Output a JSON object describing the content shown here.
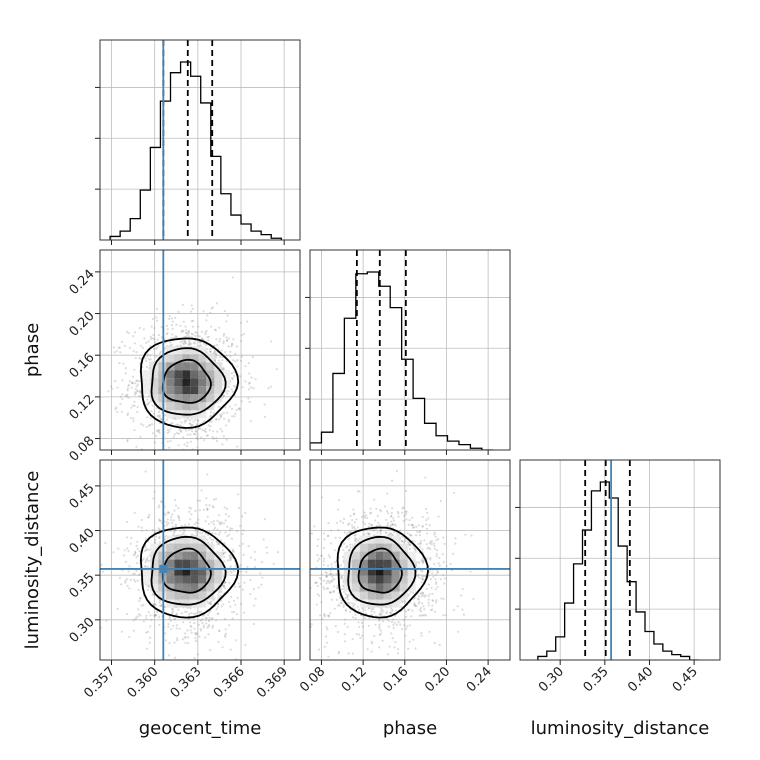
{
  "chart_data": {
    "type": "corner",
    "parameters": [
      "geocent_time",
      "phase",
      "luminosity_distance"
    ],
    "axis_labels": {
      "x": [
        "geocent_time",
        "phase",
        "luminosity_distance"
      ],
      "y": [
        "",
        "phase",
        "luminosity_distance"
      ]
    },
    "truth": {
      "geocent_time": 0.3606,
      "phase": null,
      "luminosity_distance": 0.357
    },
    "truth_color": "#4682b4",
    "ranges": {
      "geocent_time": [
        0.3562,
        0.3701
      ],
      "phase": [
        0.069,
        0.261
      ],
      "luminosity_distance": [
        0.255,
        0.479
      ]
    },
    "ticks": {
      "geocent_time": [
        0.357,
        0.36,
        0.363,
        0.366,
        0.369
      ],
      "phase": [
        0.08,
        0.12,
        0.16,
        0.2,
        0.24
      ],
      "luminosity_distance": [
        0.3,
        0.35,
        0.4,
        0.45
      ]
    },
    "tick_labels": {
      "geocent_time": [
        "0.357",
        "0.360",
        "0.363",
        "0.366",
        "0.369"
      ],
      "phase": [
        "0.08",
        "0.12",
        "0.16",
        "0.20",
        "0.24"
      ],
      "luminosity_distance": [
        "0.30",
        "0.35",
        "0.40",
        "0.45"
      ]
    },
    "grid": true,
    "histograms": [
      {
        "parameter": "geocent_time",
        "quantiles": [
          0.3606,
          0.3623,
          0.364
        ],
        "bins": [
          {
            "x0": 0.3569,
            "x1": 0.3576,
            "v": 2
          },
          {
            "x0": 0.3576,
            "x1": 0.3583,
            "v": 5
          },
          {
            "x0": 0.3583,
            "x1": 0.359,
            "v": 12
          },
          {
            "x0": 0.359,
            "x1": 0.3597,
            "v": 28
          },
          {
            "x0": 0.3597,
            "x1": 0.3604,
            "v": 52
          },
          {
            "x0": 0.3604,
            "x1": 0.3611,
            "v": 78
          },
          {
            "x0": 0.3611,
            "x1": 0.3618,
            "v": 94
          },
          {
            "x0": 0.3618,
            "x1": 0.3625,
            "v": 100
          },
          {
            "x0": 0.3625,
            "x1": 0.3632,
            "v": 92
          },
          {
            "x0": 0.3632,
            "x1": 0.3639,
            "v": 77
          },
          {
            "x0": 0.3639,
            "x1": 0.3646,
            "v": 47
          },
          {
            "x0": 0.3646,
            "x1": 0.3653,
            "v": 26
          },
          {
            "x0": 0.3653,
            "x1": 0.366,
            "v": 14
          },
          {
            "x0": 0.366,
            "x1": 0.3667,
            "v": 9
          },
          {
            "x0": 0.3667,
            "x1": 0.3674,
            "v": 5
          },
          {
            "x0": 0.3674,
            "x1": 0.3681,
            "v": 3
          },
          {
            "x0": 0.3681,
            "x1": 0.3688,
            "v": 1
          }
        ]
      },
      {
        "parameter": "phase",
        "quantiles": [
          0.114,
          0.136,
          0.161
        ],
        "bins": [
          {
            "x0": 0.069,
            "x1": 0.08,
            "v": 4
          },
          {
            "x0": 0.08,
            "x1": 0.091,
            "v": 10
          },
          {
            "x0": 0.091,
            "x1": 0.102,
            "v": 43
          },
          {
            "x0": 0.102,
            "x1": 0.113,
            "v": 74
          },
          {
            "x0": 0.113,
            "x1": 0.124,
            "v": 99
          },
          {
            "x0": 0.124,
            "x1": 0.135,
            "v": 100
          },
          {
            "x0": 0.135,
            "x1": 0.146,
            "v": 92
          },
          {
            "x0": 0.146,
            "x1": 0.157,
            "v": 80
          },
          {
            "x0": 0.157,
            "x1": 0.168,
            "v": 51
          },
          {
            "x0": 0.168,
            "x1": 0.179,
            "v": 29
          },
          {
            "x0": 0.179,
            "x1": 0.19,
            "v": 15
          },
          {
            "x0": 0.19,
            "x1": 0.201,
            "v": 8
          },
          {
            "x0": 0.201,
            "x1": 0.212,
            "v": 5
          },
          {
            "x0": 0.212,
            "x1": 0.223,
            "v": 3
          },
          {
            "x0": 0.223,
            "x1": 0.234,
            "v": 1
          },
          {
            "x0": 0.234,
            "x1": 0.245,
            "v": 0
          }
        ]
      },
      {
        "parameter": "luminosity_distance",
        "quantiles": [
          0.328,
          0.351,
          0.378
        ],
        "bins": [
          {
            "x0": 0.275,
            "x1": 0.285,
            "v": 2
          },
          {
            "x0": 0.285,
            "x1": 0.295,
            "v": 5
          },
          {
            "x0": 0.295,
            "x1": 0.305,
            "v": 13
          },
          {
            "x0": 0.305,
            "x1": 0.315,
            "v": 32
          },
          {
            "x0": 0.315,
            "x1": 0.325,
            "v": 54
          },
          {
            "x0": 0.325,
            "x1": 0.335,
            "v": 73
          },
          {
            "x0": 0.335,
            "x1": 0.345,
            "v": 95
          },
          {
            "x0": 0.345,
            "x1": 0.355,
            "v": 100
          },
          {
            "x0": 0.355,
            "x1": 0.365,
            "v": 91
          },
          {
            "x0": 0.365,
            "x1": 0.375,
            "v": 64
          },
          {
            "x0": 0.375,
            "x1": 0.385,
            "v": 44
          },
          {
            "x0": 0.385,
            "x1": 0.395,
            "v": 27
          },
          {
            "x0": 0.395,
            "x1": 0.405,
            "v": 16
          },
          {
            "x0": 0.405,
            "x1": 0.415,
            "v": 9
          },
          {
            "x0": 0.415,
            "x1": 0.425,
            "v": 5
          },
          {
            "x0": 0.425,
            "x1": 0.435,
            "v": 3
          },
          {
            "x0": 0.435,
            "x1": 0.445,
            "v": 2
          },
          {
            "x0": 0.445,
            "x1": 0.455,
            "v": 0
          }
        ]
      }
    ],
    "joint": [
      {
        "x": "geocent_time",
        "y": "phase",
        "mean": [
          0.3622,
          0.134
        ],
        "sd": [
          0.00175,
          0.0262
        ],
        "contours": [
          {
            "rx": 0.00165,
            "ry": 0.0205
          },
          {
            "rx": 0.00255,
            "ry": 0.032
          },
          {
            "rx": 0.00335,
            "ry": 0.043
          }
        ]
      },
      {
        "x": "geocent_time",
        "y": "luminosity_distance",
        "mean": [
          0.3622,
          0.354
        ],
        "sd": [
          0.00175,
          0.0308
        ],
        "contours": [
          {
            "rx": 0.00165,
            "ry": 0.0245
          },
          {
            "rx": 0.00255,
            "ry": 0.038
          },
          {
            "rx": 0.00335,
            "ry": 0.0505
          }
        ]
      },
      {
        "x": "phase",
        "y": "luminosity_distance",
        "mean": [
          0.136,
          0.354
        ],
        "sd": [
          0.0262,
          0.0308
        ],
        "contours": [
          {
            "rx": 0.0205,
            "ry": 0.0245
          },
          {
            "rx": 0.032,
            "ry": 0.038
          },
          {
            "rx": 0.043,
            "ry": 0.0505
          }
        ]
      }
    ]
  }
}
